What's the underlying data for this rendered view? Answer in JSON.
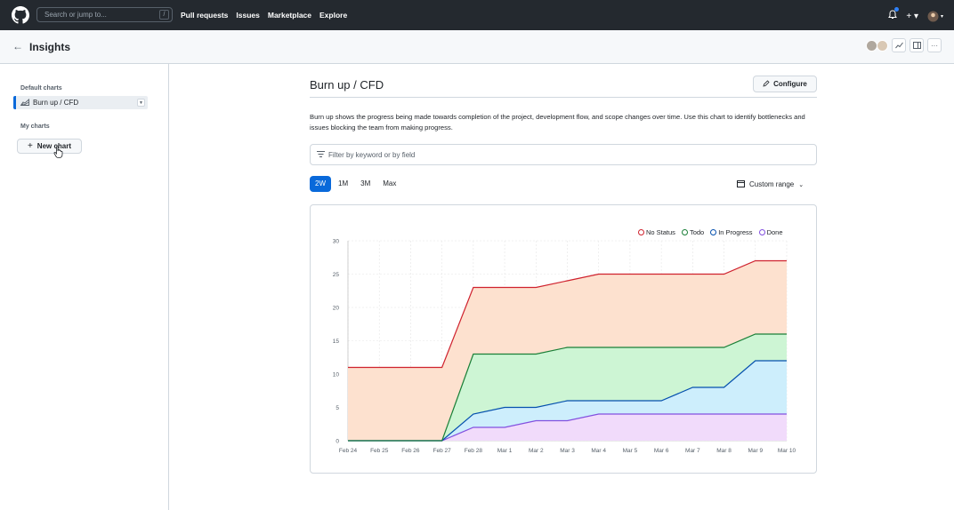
{
  "topbar": {
    "search_placeholder": "Search or jump to...",
    "search_shortcut": "/",
    "nav": [
      "Pull requests",
      "Issues",
      "Marketplace",
      "Explore"
    ]
  },
  "header": {
    "title": "Insights"
  },
  "sidebar": {
    "default_heading": "Default charts",
    "default_item": "Burn up / CFD",
    "my_heading": "My charts",
    "new_chart_label": "New chart"
  },
  "main": {
    "title": "Burn up / CFD",
    "configure_label": "Configure",
    "description": "Burn up shows the progress being made towards completion of the project, development flow, and scope changes over time. Use this chart to identify bottlenecks and issues blocking the team from making progress.",
    "filter_placeholder": "Filter by keyword or by field",
    "ranges": [
      "2W",
      "1M",
      "3M",
      "Max"
    ],
    "active_range": "2W",
    "custom_range_label": "Custom range"
  },
  "colors": {
    "accent": "#0969da",
    "no_status": "#cf222e",
    "todo": "#1a7f37",
    "in_progress": "#0550ae",
    "done": "#8250df"
  },
  "chart_data": {
    "type": "area",
    "x": [
      "Feb 24",
      "Feb 25",
      "Feb 26",
      "Feb 27",
      "Feb 28",
      "Mar 1",
      "Mar 2",
      "Mar 3",
      "Mar 4",
      "Mar 5",
      "Mar 6",
      "Mar 7",
      "Mar 8",
      "Mar 9",
      "Mar 10"
    ],
    "series": [
      {
        "name": "No Status",
        "color": "#cf222e",
        "fill": "#fde1cf",
        "values": [
          11,
          11,
          11,
          11,
          23,
          23,
          23,
          24,
          25,
          25,
          25,
          25,
          25,
          27,
          27
        ]
      },
      {
        "name": "Todo",
        "color": "#1a7f37",
        "fill": "#cdf5d4",
        "values": [
          0,
          0,
          0,
          0,
          13,
          13,
          13,
          14,
          14,
          14,
          14,
          14,
          14,
          16,
          16
        ]
      },
      {
        "name": "In Progress",
        "color": "#0550ae",
        "fill": "#cdeefc",
        "values": [
          0,
          0,
          0,
          0,
          4,
          5,
          5,
          6,
          6,
          6,
          6,
          8,
          8,
          12,
          12
        ]
      },
      {
        "name": "Done",
        "color": "#8250df",
        "fill": "#f1dbfb",
        "values": [
          0,
          0,
          0,
          0,
          2,
          2,
          3,
          3,
          4,
          4,
          4,
          4,
          4,
          4,
          4
        ]
      }
    ],
    "ylim": [
      0,
      30
    ],
    "yticks": [
      0,
      5,
      10,
      15,
      20,
      25,
      30
    ],
    "grid": true,
    "legend": "top-right"
  }
}
